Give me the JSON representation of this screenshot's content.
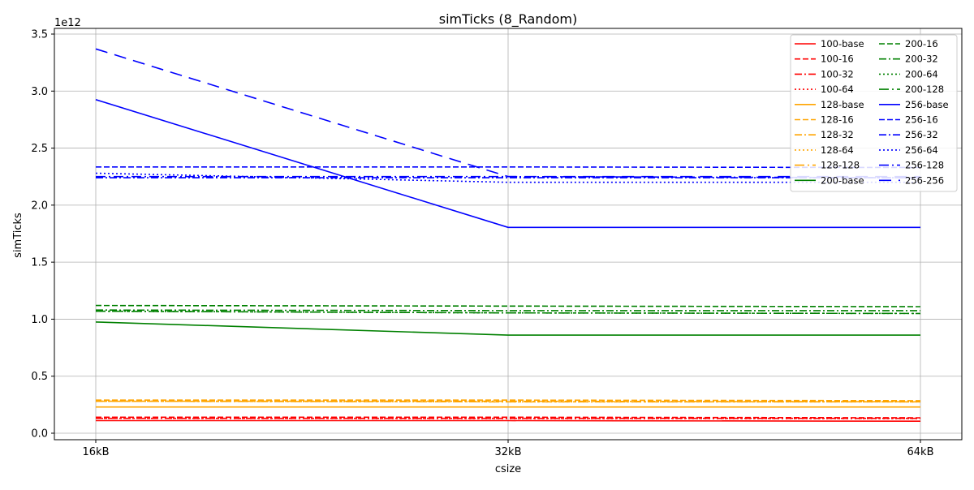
{
  "chart_data": {
    "type": "line",
    "title": "simTicks (8_Random)",
    "xlabel": "csize",
    "ylabel": "simTicks",
    "y_scale_label": "1e12",
    "categories": [
      "16kB",
      "32kB",
      "64kB"
    ],
    "ylim": [
      0,
      3.5
    ],
    "yticks": [
      0.0,
      0.5,
      1.0,
      1.5,
      2.0,
      2.5,
      3.0,
      3.5
    ],
    "ytick_labels": [
      "0.0",
      "0.5",
      "1.0",
      "1.5",
      "2.0",
      "2.5",
      "3.0",
      "3.5"
    ],
    "grid": true,
    "legend_position": "top-right",
    "legend_columns": 2,
    "series": [
      {
        "name": "100-base",
        "color": "#ff0000",
        "dash": "solid",
        "values": [
          0.11,
          0.11,
          0.105
        ]
      },
      {
        "name": "100-16",
        "color": "#ff0000",
        "dash": "dashed",
        "values": [
          0.14,
          0.14,
          0.135
        ]
      },
      {
        "name": "100-32",
        "color": "#ff0000",
        "dash": "dashdot",
        "values": [
          0.13,
          0.13,
          0.13
        ]
      },
      {
        "name": "100-64",
        "color": "#ff0000",
        "dash": "dotted",
        "values": [
          0.13,
          0.128,
          0.128
        ]
      },
      {
        "name": "128-base",
        "color": "#ffa500",
        "dash": "solid",
        "values": [
          0.23,
          0.23,
          0.23
        ]
      },
      {
        "name": "128-16",
        "color": "#ffa500",
        "dash": "dashed",
        "values": [
          0.29,
          0.29,
          0.285
        ]
      },
      {
        "name": "128-32",
        "color": "#ffa500",
        "dash": "dashdot",
        "values": [
          0.28,
          0.28,
          0.275
        ]
      },
      {
        "name": "128-64",
        "color": "#ffa500",
        "dash": "dotted",
        "values": [
          0.28,
          0.275,
          0.275
        ]
      },
      {
        "name": "128-128",
        "color": "#ffa500",
        "dash": "dashdot2",
        "values": [
          0.28,
          0.275,
          0.275
        ]
      },
      {
        "name": "200-base",
        "color": "#008000",
        "dash": "solid",
        "values": [
          0.975,
          0.86,
          0.86
        ]
      },
      {
        "name": "200-16",
        "color": "#008000",
        "dash": "dashed",
        "values": [
          1.12,
          1.115,
          1.11
        ]
      },
      {
        "name": "200-32",
        "color": "#008000",
        "dash": "dashdot",
        "values": [
          1.08,
          1.075,
          1.075
        ]
      },
      {
        "name": "200-64",
        "color": "#008000",
        "dash": "dotted",
        "values": [
          1.07,
          1.055,
          1.05
        ]
      },
      {
        "name": "200-128",
        "color": "#008000",
        "dash": "dashdot2",
        "values": [
          1.07,
          1.055,
          1.05
        ]
      },
      {
        "name": "256-base",
        "color": "#0000ff",
        "dash": "solid",
        "values": [
          2.925,
          1.805,
          1.805
        ]
      },
      {
        "name": "256-16",
        "color": "#0000ff",
        "dash": "dashed",
        "values": [
          2.335,
          2.335,
          2.33
        ]
      },
      {
        "name": "256-32",
        "color": "#0000ff",
        "dash": "dashdot",
        "values": [
          2.24,
          2.24,
          2.24
        ]
      },
      {
        "name": "256-64",
        "color": "#0000ff",
        "dash": "dotted",
        "values": [
          2.28,
          2.2,
          2.2
        ]
      },
      {
        "name": "256-128",
        "color": "#0000ff",
        "dash": "dashdot2",
        "values": [
          2.25,
          2.25,
          2.24
        ]
      },
      {
        "name": "256-256",
        "color": "#0000ff",
        "dash": "longdash",
        "values": [
          3.37,
          2.25,
          2.25
        ]
      }
    ]
  }
}
